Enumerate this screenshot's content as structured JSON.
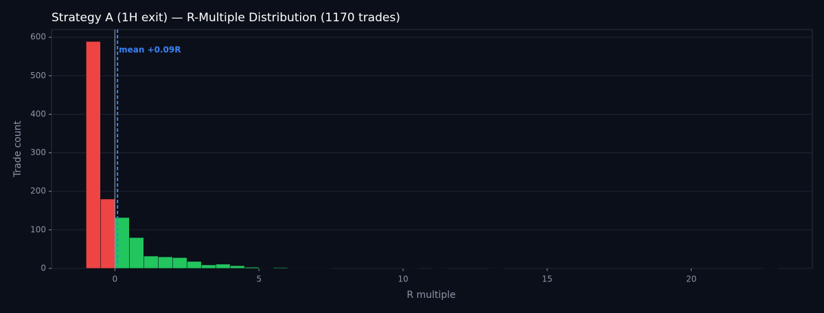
{
  "chart_data": {
    "type": "histogram",
    "title": "Strategy A (1H exit) — R-Multiple Distribution (1170 trades)",
    "x_label": "R multiple",
    "y_label": "Trade count",
    "bins": [
      -1,
      -0.5,
      0,
      0.5,
      1,
      1.5,
      2,
      2.5,
      3,
      3.5,
      4,
      4.5,
      5,
      5.5,
      6,
      6.5,
      7,
      7.5,
      8,
      8.5,
      9,
      9.5,
      10,
      10.5,
      11,
      11.5,
      12,
      12.5,
      13,
      13.5,
      14,
      14.5,
      15,
      15.5,
      16,
      16.5,
      17,
      17.5,
      18,
      18.5,
      19,
      19.5,
      20,
      20.5,
      21,
      21.5,
      22,
      22.5,
      23
    ],
    "counts": [
      589,
      180,
      132,
      80,
      32,
      30,
      28,
      18,
      9,
      11,
      7,
      3,
      1,
      2,
      1,
      1,
      1,
      0,
      0,
      0,
      0,
      0,
      1,
      0,
      1,
      0,
      0,
      0,
      1,
      0,
      0,
      0,
      0,
      0,
      0,
      0,
      0,
      0,
      0,
      0,
      0,
      0,
      0,
      0,
      0,
      0,
      0,
      1
    ],
    "negative_color": "#ef4444",
    "positive_color": "#22c55e",
    "reference_line_x": 0,
    "mean": 0.09,
    "mean_label": "mean +0.09R",
    "mean_color": "#3b82f6",
    "xlim": [
      -2.2,
      24.2
    ],
    "ylim": [
      0,
      620
    ],
    "xticks": [
      0,
      5,
      10,
      15,
      20
    ],
    "yticks": [
      0,
      100,
      200,
      300,
      400,
      500,
      600
    ],
    "grid": true
  }
}
